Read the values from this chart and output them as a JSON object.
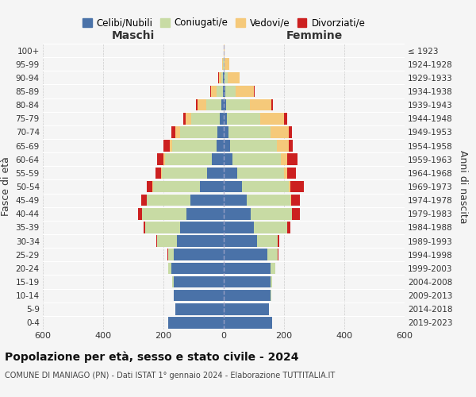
{
  "age_groups": [
    "0-4",
    "5-9",
    "10-14",
    "15-19",
    "20-24",
    "25-29",
    "30-34",
    "35-39",
    "40-44",
    "45-49",
    "50-54",
    "55-59",
    "60-64",
    "65-69",
    "70-74",
    "75-79",
    "80-84",
    "85-89",
    "90-94",
    "95-99",
    "100+"
  ],
  "birth_years": [
    "2019-2023",
    "2014-2018",
    "2009-2013",
    "2004-2008",
    "1999-2003",
    "1994-1998",
    "1989-1993",
    "1984-1988",
    "1979-1983",
    "1974-1978",
    "1969-1973",
    "1964-1968",
    "1959-1963",
    "1954-1958",
    "1949-1953",
    "1944-1948",
    "1939-1943",
    "1934-1938",
    "1929-1933",
    "1924-1928",
    "≤ 1923"
  ],
  "colors": {
    "celibi": "#4a72a8",
    "coniugati": "#c8dba4",
    "vedovi": "#f5c97a",
    "divorziati": "#cc2020"
  },
  "maschi": {
    "celibi": [
      185,
      160,
      165,
      165,
      175,
      165,
      155,
      145,
      125,
      110,
      80,
      55,
      40,
      25,
      20,
      12,
      8,
      3,
      2,
      1,
      1
    ],
    "coniugati": [
      0,
      0,
      2,
      5,
      10,
      20,
      65,
      115,
      145,
      145,
      155,
      150,
      155,
      145,
      125,
      95,
      50,
      20,
      5,
      1,
      0
    ],
    "vedovi": [
      0,
      0,
      0,
      0,
      0,
      0,
      0,
      0,
      1,
      1,
      2,
      3,
      5,
      10,
      15,
      20,
      30,
      20,
      10,
      2,
      0
    ],
    "divorziati": [
      0,
      0,
      0,
      0,
      0,
      2,
      3,
      5,
      12,
      18,
      18,
      18,
      20,
      20,
      15,
      8,
      3,
      2,
      1,
      0,
      0
    ]
  },
  "femmine": {
    "celibi": [
      160,
      150,
      155,
      155,
      155,
      145,
      110,
      100,
      90,
      75,
      60,
      45,
      30,
      20,
      15,
      10,
      8,
      5,
      2,
      1,
      1
    ],
    "coniugati": [
      0,
      0,
      2,
      5,
      15,
      35,
      70,
      110,
      135,
      145,
      155,
      155,
      160,
      155,
      140,
      110,
      80,
      35,
      10,
      2,
      0
    ],
    "vedovi": [
      0,
      0,
      0,
      0,
      0,
      0,
      0,
      1,
      2,
      3,
      5,
      10,
      20,
      40,
      60,
      80,
      70,
      60,
      40,
      15,
      2
    ],
    "divorziati": [
      0,
      0,
      0,
      0,
      0,
      2,
      5,
      10,
      25,
      30,
      45,
      30,
      35,
      15,
      10,
      10,
      5,
      3,
      1,
      0,
      0
    ]
  },
  "title": "Popolazione per età, sesso e stato civile - 2024",
  "subtitle": "COMUNE DI MANIAGO (PN) - Dati ISTAT 1° gennaio 2024 - Elaborazione TUTTITALIA.IT",
  "xlabel_maschi": "Maschi",
  "xlabel_femmine": "Femmine",
  "ylabel_left": "Fasce di età",
  "ylabel_right": "Anni di nascita",
  "xlim": 600,
  "legend_labels": [
    "Celibi/Nubili",
    "Coniugati/e",
    "Vedovi/e",
    "Divorziati/e"
  ],
  "background_color": "#f5f5f5"
}
